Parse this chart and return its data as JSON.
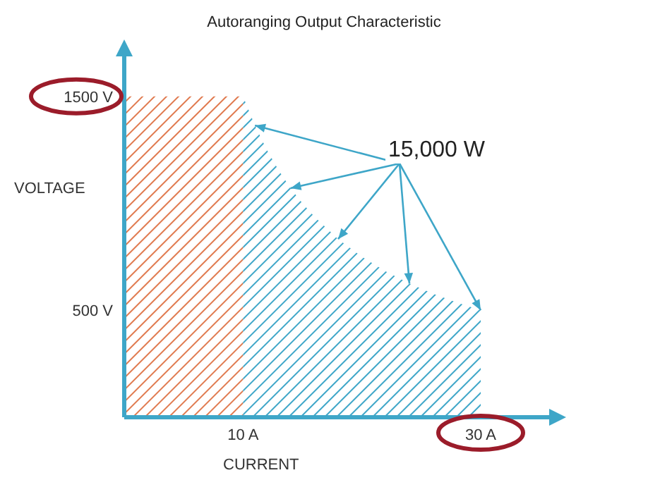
{
  "chart_data": {
    "type": "area",
    "title": "Autoranging Output Characteristic",
    "xlabel": "CURRENT",
    "ylabel": "VOLTAGE",
    "series": [
      {
        "color": "#e07a4f",
        "x": [
          0,
          10
        ],
        "values": [
          1500,
          1500
        ]
      },
      {
        "color": "#3ea6c8",
        "x": [
          10,
          11,
          12,
          13,
          14,
          15,
          16,
          18,
          20,
          22,
          24,
          26,
          28,
          30
        ],
        "values": [
          1500,
          1364,
          1250,
          1154,
          1071,
          1000,
          938,
          833,
          750,
          682,
          625,
          577,
          536,
          500
        ]
      }
    ],
    "xlim": [
      0,
      36
    ],
    "xticks": [
      {
        "value": 10,
        "label": "10 A"
      },
      {
        "value": 30,
        "label": "30 A"
      }
    ],
    "ylim": [
      0,
      1700
    ],
    "yticks": [
      {
        "value": 500,
        "label": "500 V"
      },
      {
        "value": 1500,
        "label": "1500 V"
      }
    ],
    "annotations": [
      {
        "text": "15,000 W",
        "x": 18,
        "y": 833
      }
    ]
  }
}
